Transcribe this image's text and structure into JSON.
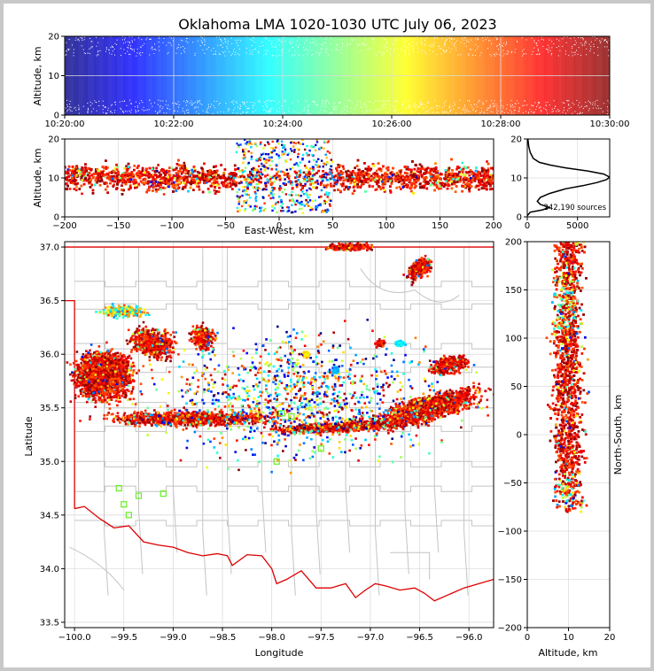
{
  "title": "Oklahoma LMA 1020-1030 UTC July 06, 2023",
  "chart_data": [
    {
      "id": "time-height",
      "type": "scatter",
      "xlabel": "",
      "ylabel": "Altitude, km",
      "xlim": [
        "10:20:00",
        "10:30:00"
      ],
      "ylim": [
        0,
        20
      ],
      "xticks": [
        "10:20:00",
        "10:22:00",
        "10:24:00",
        "10:26:00",
        "10:28:00",
        "10:30:00"
      ],
      "yticks": [
        "0",
        "10",
        "20"
      ],
      "color_by": "time"
    },
    {
      "id": "east-west-altitude",
      "type": "scatter",
      "xlabel": "East-West, km",
      "ylabel": "Altitude, km",
      "xlim": [
        -200,
        200
      ],
      "ylim": [
        0,
        20
      ],
      "xticks": [
        "−200",
        "−150",
        "−100",
        "−50",
        "0",
        "50",
        "100",
        "150",
        "200"
      ],
      "yticks": [
        "0",
        "10",
        "20"
      ]
    },
    {
      "id": "altitude-histogram",
      "type": "line",
      "xlabel": "",
      "ylabel": "",
      "xlim": [
        0,
        8200
      ],
      "ylim": [
        0,
        20
      ],
      "xticks": [
        "0",
        "5000"
      ],
      "yticks": [
        "0",
        "10",
        "20"
      ],
      "annotation": "242,190 sources",
      "profile": [
        [
          0,
          0.3
        ],
        [
          300,
          1.2
        ],
        [
          1500,
          1.8
        ],
        [
          2200,
          2.4
        ],
        [
          1300,
          3.2
        ],
        [
          1000,
          4.0
        ],
        [
          1300,
          5.0
        ],
        [
          2200,
          6.0
        ],
        [
          3800,
          7.2
        ],
        [
          5500,
          8.0
        ],
        [
          6900,
          8.8
        ],
        [
          7900,
          9.6
        ],
        [
          8200,
          10.2
        ],
        [
          7600,
          11.0
        ],
        [
          6000,
          11.8
        ],
        [
          3800,
          12.6
        ],
        [
          2300,
          13.3
        ],
        [
          1200,
          14.0
        ],
        [
          600,
          15.0
        ],
        [
          300,
          16.5
        ],
        [
          150,
          18.0
        ],
        [
          60,
          20.0
        ]
      ]
    },
    {
      "id": "plan-view",
      "type": "scatter",
      "xlabel": "Longitude",
      "ylabel": "Latitude",
      "xlim": [
        -100.1,
        -95.75
      ],
      "ylim": [
        33.45,
        37.05
      ],
      "xticks": [
        "−100.0",
        "−99.5",
        "−99.0",
        "−98.5",
        "−98.0",
        "−97.5",
        "−97.0",
        "−96.5",
        "−96.0"
      ],
      "yticks": [
        "33.5",
        "34.0",
        "34.5",
        "35.0",
        "35.5",
        "36.0",
        "36.5",
        "37.0"
      ],
      "stations": [
        [
          -97.9,
          35.45
        ],
        [
          -97.8,
          35.42
        ],
        [
          -97.95,
          35.0
        ],
        [
          -97.5,
          35.12
        ],
        [
          -99.5,
          34.6
        ],
        [
          -99.45,
          34.5
        ],
        [
          -99.55,
          34.75
        ],
        [
          -99.35,
          34.68
        ],
        [
          -99.1,
          34.7
        ]
      ]
    },
    {
      "id": "altitude-north-south",
      "type": "scatter",
      "xlabel": "Altitude, km",
      "ylabel": "North-South, km",
      "xlim": [
        0,
        20
      ],
      "ylim": [
        -200,
        200
      ],
      "xticks": [
        "0",
        "10",
        "20"
      ],
      "yticks": [
        "−200",
        "−150",
        "−100",
        "−50",
        "0",
        "50",
        "100",
        "150",
        "200"
      ]
    }
  ]
}
